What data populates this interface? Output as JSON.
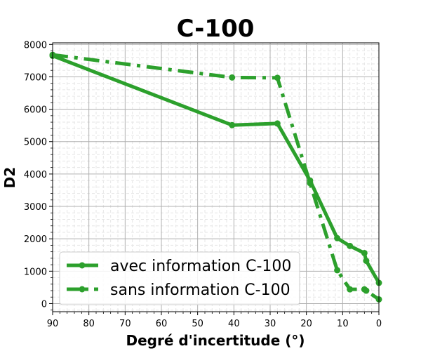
{
  "chart_data": {
    "type": "line",
    "title": "C-100",
    "xlabel": "Degré d'incertitude (°)",
    "ylabel": "D2",
    "xlim": [
      90,
      0
    ],
    "ylim": [
      -250,
      8050
    ],
    "x_reversed": true,
    "xticks": [
      90,
      80,
      70,
      60,
      50,
      40,
      30,
      20,
      10,
      0
    ],
    "yticks": [
      0,
      1000,
      2000,
      3000,
      4000,
      5000,
      6000,
      7000,
      8000
    ],
    "grid": true,
    "minor_grid": true,
    "legend_position": "lower-left",
    "series": [
      {
        "name": "avec information C-100",
        "color": "#2ca02c",
        "linestyle": "solid",
        "marker": "circle",
        "x": [
          90,
          40.5,
          28,
          19,
          11.5,
          8,
          4,
          3.5,
          0
        ],
        "y": [
          7650,
          5510,
          5560,
          3800,
          2020,
          1780,
          1560,
          1320,
          640
        ]
      },
      {
        "name": "sans information C-100",
        "color": "#2ca02c",
        "linestyle": "dashdot",
        "marker": "circle",
        "x": [
          90,
          40.5,
          28,
          19,
          11.5,
          8,
          4,
          3.5,
          0
        ],
        "y": [
          7680,
          6980,
          6970,
          3720,
          1030,
          440,
          440,
          400,
          130
        ]
      }
    ]
  }
}
